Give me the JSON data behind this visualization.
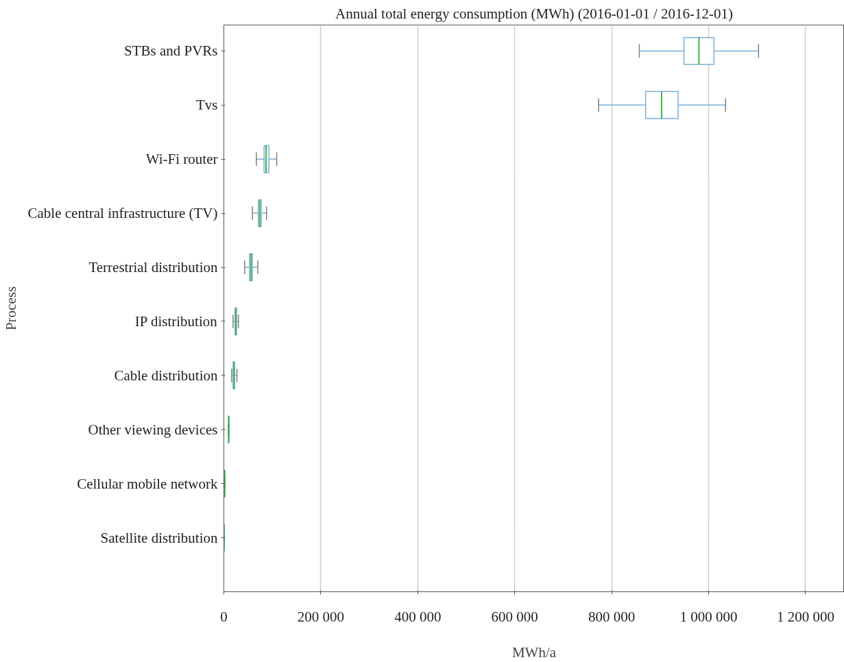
{
  "chart_data": {
    "type": "box",
    "orientation": "horizontal",
    "title": "Annual total energy consumption (MWh) (2016-01-01 / 2016-12-01)",
    "xlabel": "MWh/a",
    "ylabel": "Process",
    "categories": [
      "STBs and PVRs",
      "Tvs",
      "Wi-Fi router",
      "Cable central infrastructure (TV)",
      "Terrestrial distribution",
      "IP distribution",
      "Cable distribution",
      "Other viewing devices",
      "Cellular mobile network",
      "Satellite distribution"
    ],
    "boxes": [
      {
        "low": 857000,
        "q1": 949000,
        "median": 980000,
        "q3": 1011000,
        "high": 1103000
      },
      {
        "low": 773000,
        "q1": 870000,
        "median": 903000,
        "q3": 937000,
        "high": 1035000
      },
      {
        "low": 67000,
        "q1": 83000,
        "median": 87000,
        "q3": 93000,
        "high": 109000
      },
      {
        "low": 59000,
        "q1": 71000,
        "median": 74000,
        "q3": 77000,
        "high": 88000
      },
      {
        "low": 43000,
        "q1": 53000,
        "median": 56000,
        "q3": 59000,
        "high": 70000
      },
      {
        "low": 19000,
        "q1": 23000,
        "median": 25000,
        "q3": 26000,
        "high": 30000
      },
      {
        "low": 16000,
        "q1": 19000,
        "median": 21000,
        "q3": 22000,
        "high": 27000
      },
      {
        "low": 9000,
        "q1": 9500,
        "median": 10000,
        "q3": 10500,
        "high": 11000
      },
      {
        "low": 500,
        "q1": 1000,
        "median": 1500,
        "q3": 2000,
        "high": 2500
      },
      {
        "low": 100,
        "q1": 200,
        "median": 300,
        "q3": 400,
        "high": 500
      }
    ],
    "color": "#7aaed6",
    "xlim": [
      0,
      1280000
    ],
    "xticks": [
      0,
      {
        "value": 200000,
        "label": "200 000"
      },
      {
        "value": 400000,
        "label": "400 000"
      },
      {
        "value": 600000,
        "label": "600 000"
      },
      {
        "value": 800000,
        "label": "800 000"
      },
      {
        "value": 1000000,
        "label": "1 000 000"
      },
      {
        "value": 1200000,
        "label": "1 200 000"
      }
    ],
    "grid": "x"
  }
}
